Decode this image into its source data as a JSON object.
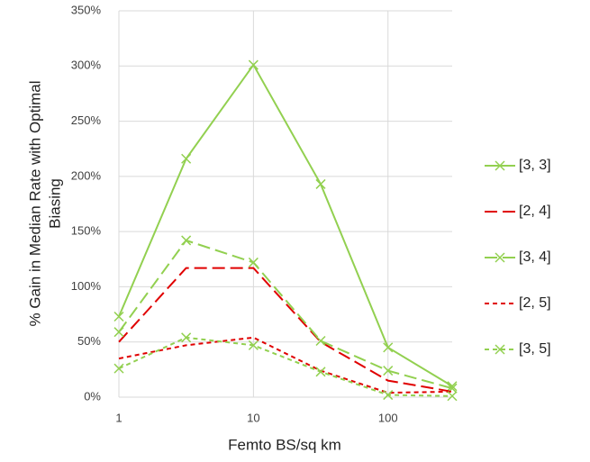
{
  "chart_data": {
    "type": "line",
    "x_label": "Femto BS/sq km",
    "y_label": [
      "% Gain in Median Rate with Optimal",
      "Biasing"
    ],
    "x": [
      1,
      3.16,
      10,
      31.6,
      100,
      300
    ],
    "xlim": [
      1,
      300
    ],
    "xticks": [
      1,
      10,
      100
    ],
    "xscale": "log",
    "ylim": [
      0,
      350
    ],
    "yticks": [
      {
        "value": 0,
        "label": "0%"
      },
      {
        "value": 50,
        "label": "50%"
      },
      {
        "value": 100,
        "label": "100%"
      },
      {
        "value": 150,
        "label": "150%"
      },
      {
        "value": 200,
        "label": "200%"
      },
      {
        "value": 250,
        "label": "250%"
      },
      {
        "value": 300,
        "label": "300%"
      },
      {
        "value": 350,
        "label": "350%"
      }
    ],
    "grid": true,
    "legend": "right",
    "series": [
      {
        "name": "[3, 3]",
        "color": "#92d050",
        "dash": "solid",
        "marker": "x",
        "values": [
          73,
          216,
          301,
          193,
          45,
          10
        ]
      },
      {
        "name": "[2, 4]",
        "color": "#e00000",
        "dash": "long-dash",
        "marker": "none",
        "values": [
          50,
          117,
          117,
          50,
          15,
          5
        ]
      },
      {
        "name": "[3, 4]",
        "color": "#92d050",
        "dash": "long-dash",
        "marker": "x",
        "values": [
          59,
          142,
          122,
          51,
          24,
          8
        ]
      },
      {
        "name": "[2, 5]",
        "color": "#e00000",
        "dash": "short-dash",
        "marker": "none",
        "values": [
          35,
          47,
          54,
          24,
          4,
          5
        ]
      },
      {
        "name": "[3, 5]",
        "color": "#92d050",
        "dash": "short-dash",
        "marker": "x",
        "values": [
          26,
          54,
          47,
          23,
          2,
          1
        ]
      }
    ]
  }
}
